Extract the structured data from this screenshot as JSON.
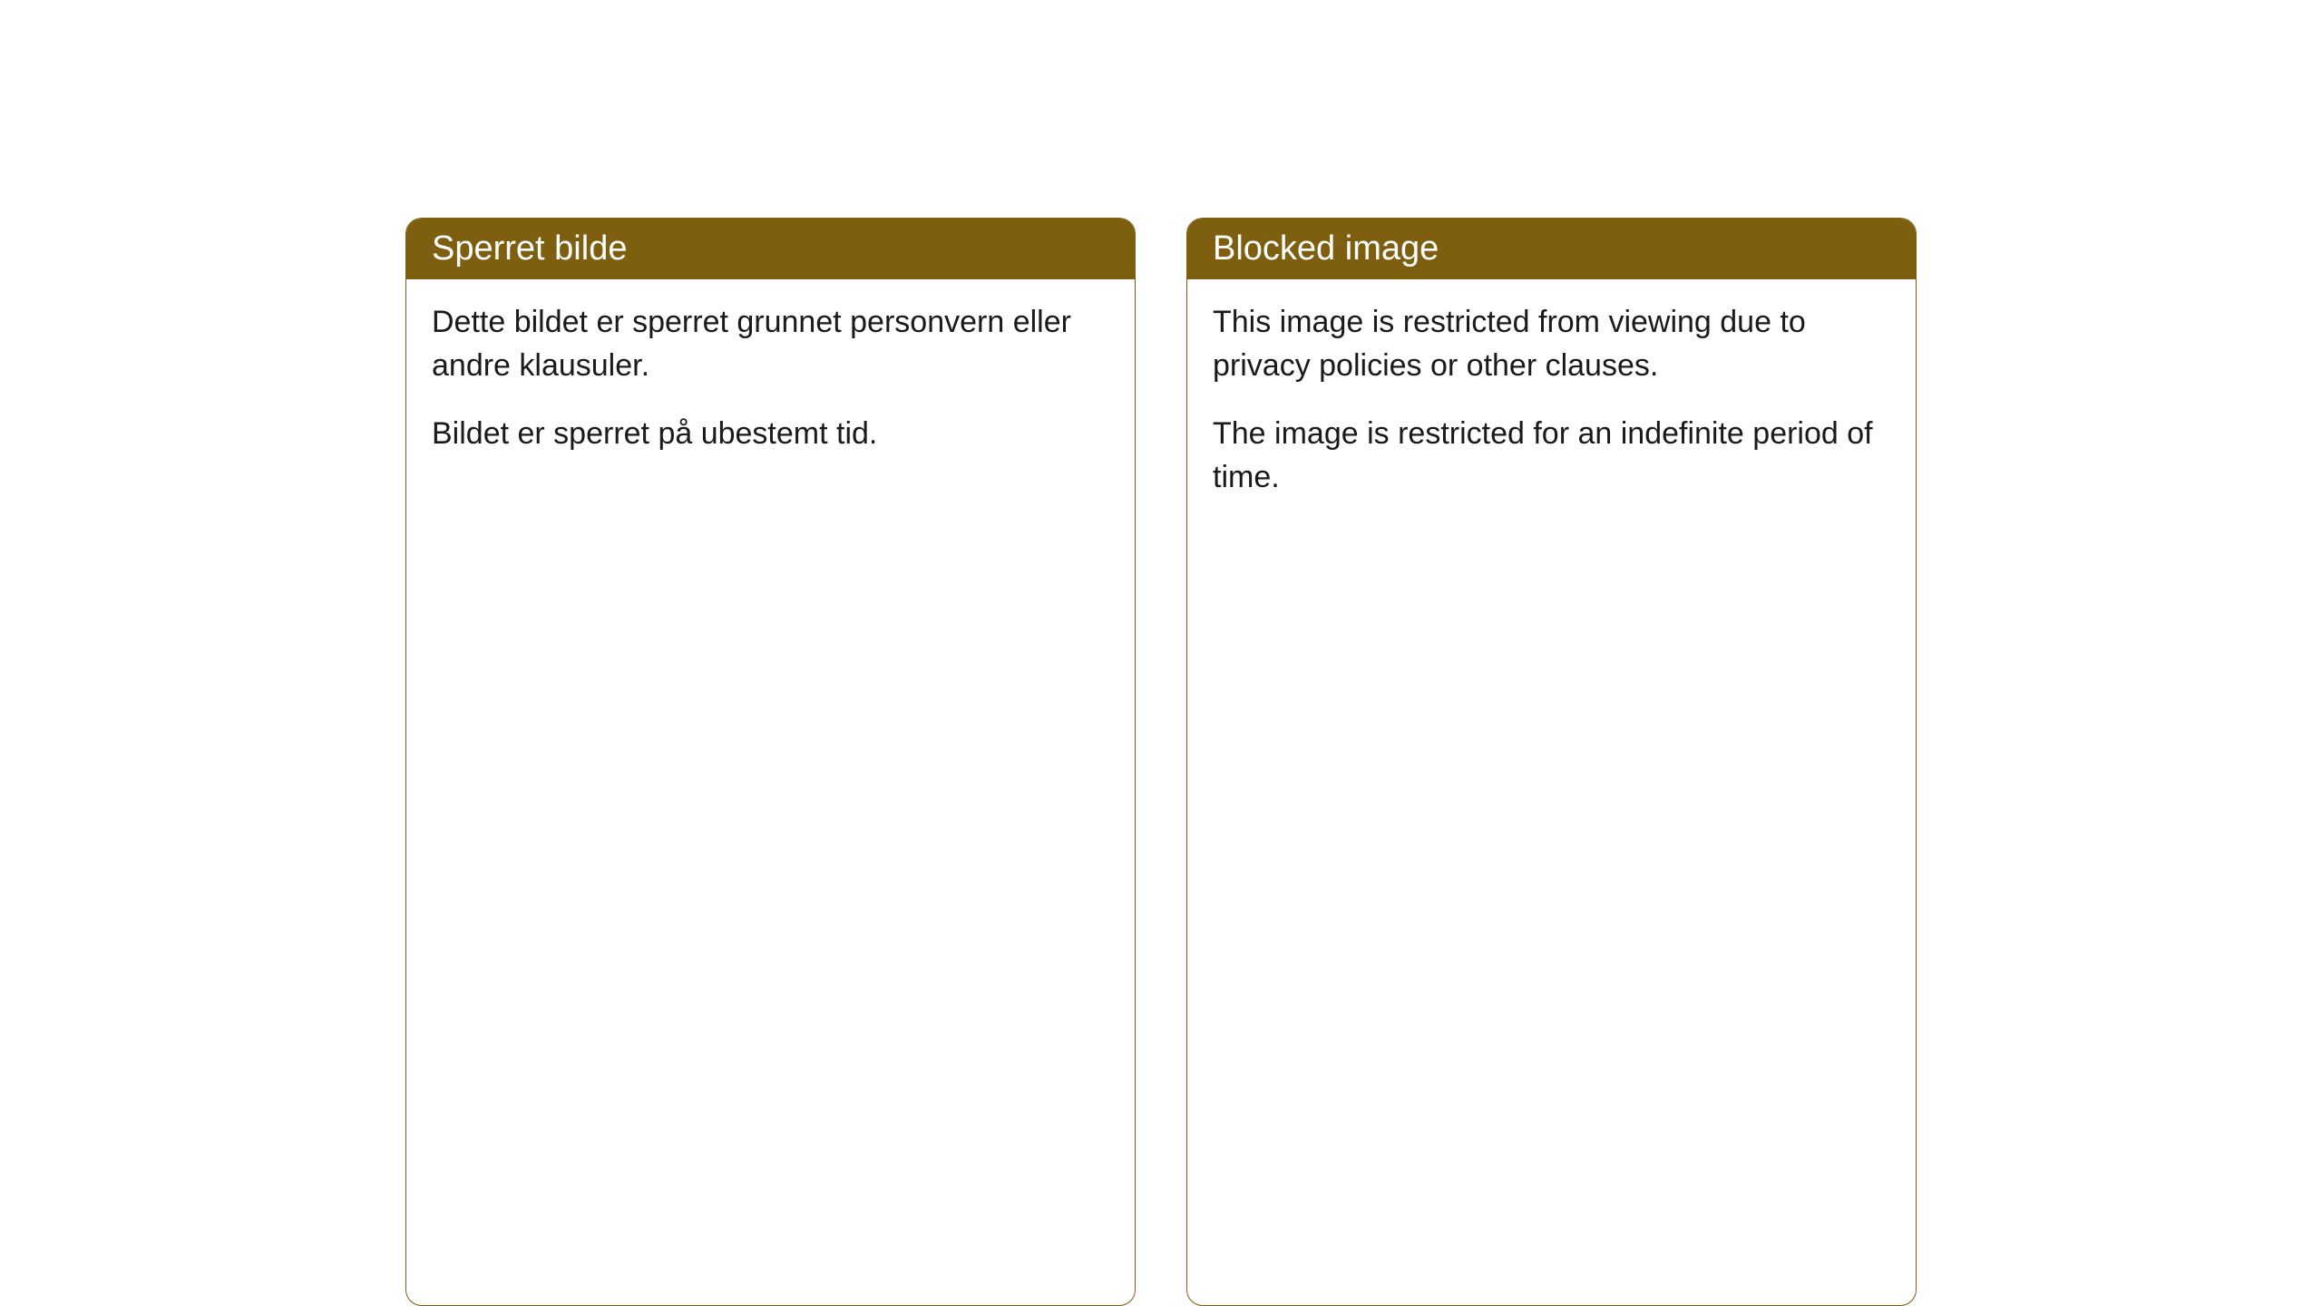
{
  "cards": [
    {
      "title": "Sperret bilde",
      "para1": "Dette bildet er sperret grunnet personvern eller andre klausuler.",
      "para2": "Bildet er sperret på ubestemt tid."
    },
    {
      "title": "Blocked image",
      "para1": "This image is restricted from viewing due to privacy policies or other clauses.",
      "para2": "The image is restricted for an indefinite period of time."
    }
  ],
  "styling": {
    "header_bg": "#7d5f0f",
    "header_text_color": "#ffffff",
    "border_color": "#7d5f0f",
    "body_bg": "#ffffff",
    "body_text_color": "#1a1a1a",
    "border_radius": 18,
    "title_fontsize": 38,
    "body_fontsize": 34
  }
}
